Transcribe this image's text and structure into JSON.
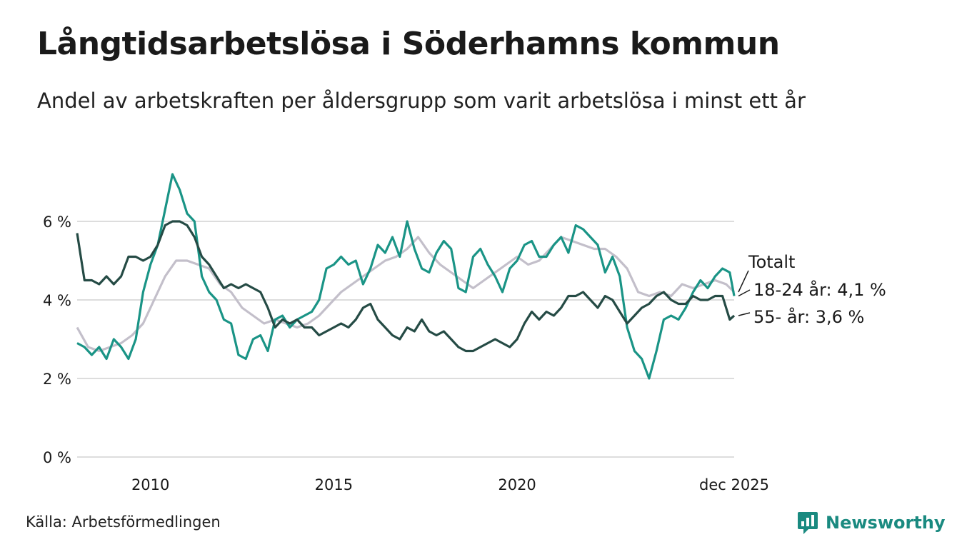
{
  "title": "Långtidsarbetslösa i Söderhamns kommun",
  "subtitle": "Andel av arbetskraften per åldersgrupp som varit arbetslösa i minst ett år",
  "source": "Källa: Arbetsförmedlingen",
  "brand": "Newsworthy",
  "colors": {
    "totalt": "#c3bfca",
    "age_18_24": "#1a9486",
    "age_55": "#254b45",
    "grid": "#dddddd",
    "text": "#1a1a1a"
  },
  "chart_data": {
    "type": "line",
    "title": "Långtidsarbetslösa i Söderhamns kommun",
    "xlabel": "",
    "ylabel": "",
    "xlim": [
      2008.0,
      2025.92
    ],
    "ylim": [
      0,
      8
    ],
    "y_ticks": [
      0,
      2,
      4,
      6
    ],
    "y_tick_labels": [
      "0 %",
      "2 %",
      "4 %",
      "6 %"
    ],
    "x_ticks": [
      2010,
      2015,
      2020,
      2025.92
    ],
    "x_tick_labels": [
      "2010",
      "2015",
      "2020",
      "dec 2025"
    ],
    "grid": true,
    "series": [
      {
        "name": "Totalt",
        "label": "Totalt",
        "color_key": "totalt",
        "x": [
          2008.0,
          2008.3,
          2008.6,
          2008.9,
          2009.2,
          2009.5,
          2009.8,
          2010.1,
          2010.4,
          2010.7,
          2011.0,
          2011.3,
          2011.6,
          2011.9,
          2012.2,
          2012.5,
          2012.8,
          2013.1,
          2013.4,
          2013.7,
          2014.0,
          2014.3,
          2014.6,
          2014.9,
          2015.2,
          2015.5,
          2015.8,
          2016.1,
          2016.4,
          2016.7,
          2017.0,
          2017.3,
          2017.6,
          2017.9,
          2018.2,
          2018.5,
          2018.8,
          2019.1,
          2019.4,
          2019.7,
          2020.0,
          2020.3,
          2020.6,
          2020.9,
          2021.2,
          2021.5,
          2021.8,
          2022.1,
          2022.4,
          2022.7,
          2023.0,
          2023.3,
          2023.6,
          2023.9,
          2024.2,
          2024.5,
          2024.8,
          2025.1,
          2025.4,
          2025.7,
          2025.92
        ],
        "values": [
          3.3,
          2.8,
          2.7,
          2.8,
          2.9,
          3.1,
          3.4,
          4.0,
          4.6,
          5.0,
          5.0,
          4.9,
          4.8,
          4.4,
          4.2,
          3.8,
          3.6,
          3.4,
          3.5,
          3.4,
          3.3,
          3.4,
          3.6,
          3.9,
          4.2,
          4.4,
          4.6,
          4.8,
          5.0,
          5.1,
          5.3,
          5.6,
          5.2,
          4.9,
          4.7,
          4.5,
          4.3,
          4.5,
          4.7,
          4.9,
          5.1,
          4.9,
          5.0,
          5.3,
          5.6,
          5.5,
          5.4,
          5.3,
          5.3,
          5.1,
          4.8,
          4.2,
          4.1,
          4.2,
          4.1,
          4.4,
          4.3,
          4.4,
          4.5,
          4.4,
          4.2
        ]
      },
      {
        "name": "18-24 år",
        "label": "18-24 år: 4,1 %",
        "color_key": "age_18_24",
        "x": [
          2008.0,
          2008.2,
          2008.4,
          2008.6,
          2008.8,
          2009.0,
          2009.2,
          2009.4,
          2009.6,
          2009.8,
          2010.0,
          2010.2,
          2010.4,
          2010.6,
          2010.8,
          2011.0,
          2011.2,
          2011.4,
          2011.6,
          2011.8,
          2012.0,
          2012.2,
          2012.4,
          2012.6,
          2012.8,
          2013.0,
          2013.2,
          2013.4,
          2013.6,
          2013.8,
          2014.0,
          2014.2,
          2014.4,
          2014.6,
          2014.8,
          2015.0,
          2015.2,
          2015.4,
          2015.6,
          2015.8,
          2016.0,
          2016.2,
          2016.4,
          2016.6,
          2016.8,
          2017.0,
          2017.2,
          2017.4,
          2017.6,
          2017.8,
          2018.0,
          2018.2,
          2018.4,
          2018.6,
          2018.8,
          2019.0,
          2019.2,
          2019.4,
          2019.6,
          2019.8,
          2020.0,
          2020.2,
          2020.4,
          2020.6,
          2020.8,
          2021.0,
          2021.2,
          2021.4,
          2021.6,
          2021.8,
          2022.0,
          2022.2,
          2022.4,
          2022.6,
          2022.8,
          2023.0,
          2023.2,
          2023.4,
          2023.6,
          2023.8,
          2024.0,
          2024.2,
          2024.4,
          2024.6,
          2024.8,
          2025.0,
          2025.2,
          2025.4,
          2025.6,
          2025.8,
          2025.92
        ],
        "values": [
          2.9,
          2.8,
          2.6,
          2.8,
          2.5,
          3.0,
          2.8,
          2.5,
          3.0,
          4.2,
          4.9,
          5.4,
          6.3,
          7.2,
          6.8,
          6.2,
          6.0,
          4.6,
          4.2,
          4.0,
          3.5,
          3.4,
          2.6,
          2.5,
          3.0,
          3.1,
          2.7,
          3.5,
          3.6,
          3.3,
          3.5,
          3.6,
          3.7,
          4.0,
          4.8,
          4.9,
          5.1,
          4.9,
          5.0,
          4.4,
          4.8,
          5.4,
          5.2,
          5.6,
          5.1,
          6.0,
          5.3,
          4.8,
          4.7,
          5.2,
          5.5,
          5.3,
          4.3,
          4.2,
          5.1,
          5.3,
          4.9,
          4.6,
          4.2,
          4.8,
          5.0,
          5.4,
          5.5,
          5.1,
          5.1,
          5.4,
          5.6,
          5.2,
          5.9,
          5.8,
          5.6,
          5.4,
          4.7,
          5.1,
          4.6,
          3.3,
          2.7,
          2.5,
          2.0,
          2.7,
          3.5,
          3.6,
          3.5,
          3.8,
          4.2,
          4.5,
          4.3,
          4.6,
          4.8,
          4.7,
          4.1
        ]
      },
      {
        "name": "55- år",
        "label": "55- år: 3,6 %",
        "color_key": "age_55",
        "x": [
          2008.0,
          2008.2,
          2008.4,
          2008.6,
          2008.8,
          2009.0,
          2009.2,
          2009.4,
          2009.6,
          2009.8,
          2010.0,
          2010.2,
          2010.4,
          2010.6,
          2010.8,
          2011.0,
          2011.2,
          2011.4,
          2011.6,
          2011.8,
          2012.0,
          2012.2,
          2012.4,
          2012.6,
          2012.8,
          2013.0,
          2013.2,
          2013.4,
          2013.6,
          2013.8,
          2014.0,
          2014.2,
          2014.4,
          2014.6,
          2014.8,
          2015.0,
          2015.2,
          2015.4,
          2015.6,
          2015.8,
          2016.0,
          2016.2,
          2016.4,
          2016.6,
          2016.8,
          2017.0,
          2017.2,
          2017.4,
          2017.6,
          2017.8,
          2018.0,
          2018.2,
          2018.4,
          2018.6,
          2018.8,
          2019.0,
          2019.2,
          2019.4,
          2019.6,
          2019.8,
          2020.0,
          2020.2,
          2020.4,
          2020.6,
          2020.8,
          2021.0,
          2021.2,
          2021.4,
          2021.6,
          2021.8,
          2022.0,
          2022.2,
          2022.4,
          2022.6,
          2022.8,
          2023.0,
          2023.2,
          2023.4,
          2023.6,
          2023.8,
          2024.0,
          2024.2,
          2024.4,
          2024.6,
          2024.8,
          2025.0,
          2025.2,
          2025.4,
          2025.6,
          2025.8,
          2025.92
        ],
        "values": [
          5.7,
          4.5,
          4.5,
          4.4,
          4.6,
          4.4,
          4.6,
          5.1,
          5.1,
          5.0,
          5.1,
          5.4,
          5.9,
          6.0,
          6.0,
          5.9,
          5.6,
          5.1,
          4.9,
          4.6,
          4.3,
          4.4,
          4.3,
          4.4,
          4.3,
          4.2,
          3.8,
          3.3,
          3.5,
          3.4,
          3.5,
          3.3,
          3.3,
          3.1,
          3.2,
          3.3,
          3.4,
          3.3,
          3.5,
          3.8,
          3.9,
          3.5,
          3.3,
          3.1,
          3.0,
          3.3,
          3.2,
          3.5,
          3.2,
          3.1,
          3.2,
          3.0,
          2.8,
          2.7,
          2.7,
          2.8,
          2.9,
          3.0,
          2.9,
          2.8,
          3.0,
          3.4,
          3.7,
          3.5,
          3.7,
          3.6,
          3.8,
          4.1,
          4.1,
          4.2,
          4.0,
          3.8,
          4.1,
          4.0,
          3.7,
          3.4,
          3.6,
          3.8,
          3.9,
          4.1,
          4.2,
          4.0,
          3.9,
          3.9,
          4.1,
          4.0,
          4.0,
          4.1,
          4.1,
          3.5,
          3.6
        ]
      }
    ],
    "annotations": [
      "Totalt",
      "18-24 år: 4,1 %",
      "55- år: 3,6 %"
    ]
  }
}
